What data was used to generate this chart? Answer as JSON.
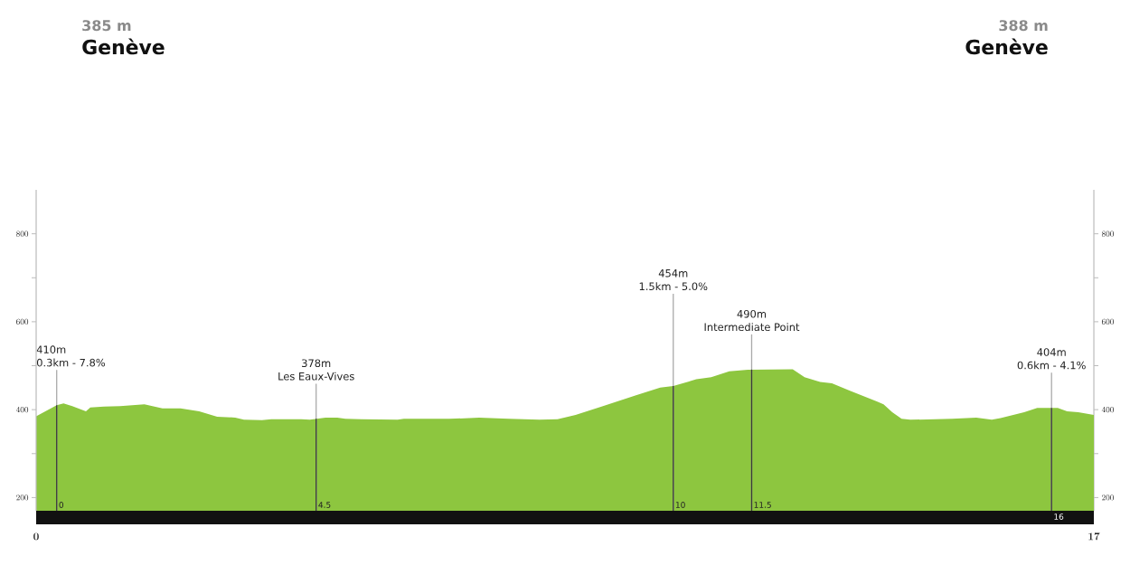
{
  "chart_data": {
    "type": "area",
    "color": "#8dc63f",
    "x": [
      0,
      0.33,
      0.44,
      0.58,
      0.8,
      0.87,
      1.09,
      1.35,
      1.74,
      2.03,
      2.32,
      2.62,
      2.91,
      3.2,
      3.34,
      3.63,
      3.78,
      4.26,
      4.4,
      4.65,
      4.84,
      4.97,
      5.23,
      5.81,
      5.91,
      6.64,
      7.12,
      7.6,
      8.09,
      8.38,
      8.67,
      9.11,
      9.63,
      10.03,
      10.24,
      10.61,
      10.85,
      11.14,
      11.44,
      12.16,
      12.35,
      12.6,
      12.79,
      13.08,
      13.51,
      13.62,
      13.76,
      13.91,
      14.05,
      14.72,
      15.11,
      15.36,
      15.5,
      15.88,
      16.09,
      16.42,
      16.57,
      16.75,
      17
    ],
    "values": [
      385,
      410,
      414,
      408,
      396,
      405,
      407,
      408,
      412,
      403,
      403,
      396,
      384,
      382,
      377,
      376,
      378,
      378,
      377,
      382,
      382,
      379,
      378,
      377,
      379,
      379,
      382,
      379,
      377,
      378,
      388,
      408,
      432,
      450,
      454,
      469,
      474,
      487,
      491,
      492,
      474,
      463,
      460,
      443,
      419,
      412,
      394,
      379,
      377,
      379,
      382,
      377,
      381,
      394,
      404,
      404,
      396,
      394,
      388
    ],
    "xlim": [
      0,
      17
    ],
    "xticks": [
      0,
      17
    ],
    "ylim": [
      170,
      900
    ],
    "yticks": [
      200,
      {
        "value": 300,
        "label": null
      },
      400,
      {
        "value": 500,
        "label": null
      },
      600,
      {
        "value": 700,
        "label": null
      },
      800
    ],
    "y2lim": [
      170,
      900
    ],
    "y2ticks": [
      200,
      {
        "value": 300,
        "label": null
      },
      400,
      {
        "value": 500,
        "label": null
      },
      600,
      {
        "value": 700,
        "label": null
      },
      800
    ],
    "ref_lines": [
      {
        "axis": "x",
        "value": 0.33,
        "label": "0"
      },
      {
        "axis": "x",
        "value": 4.5,
        "label": "4.5"
      },
      {
        "axis": "x",
        "value": 10.24,
        "label": "10"
      },
      {
        "axis": "x",
        "value": 11.5,
        "label": "11.5"
      },
      {
        "axis": "x",
        "value": 16.32,
        "label": "16"
      }
    ],
    "annotations": [
      "385 m",
      "Genève",
      "388 m",
      "Genève",
      "410m",
      "0.3km - 7.8%",
      "378m",
      "Les Eaux-Vives",
      "454m",
      "1.5km - 5.0%",
      "490m",
      "Intermediate Point",
      "404m",
      "0.6km - 4.1%"
    ]
  }
}
